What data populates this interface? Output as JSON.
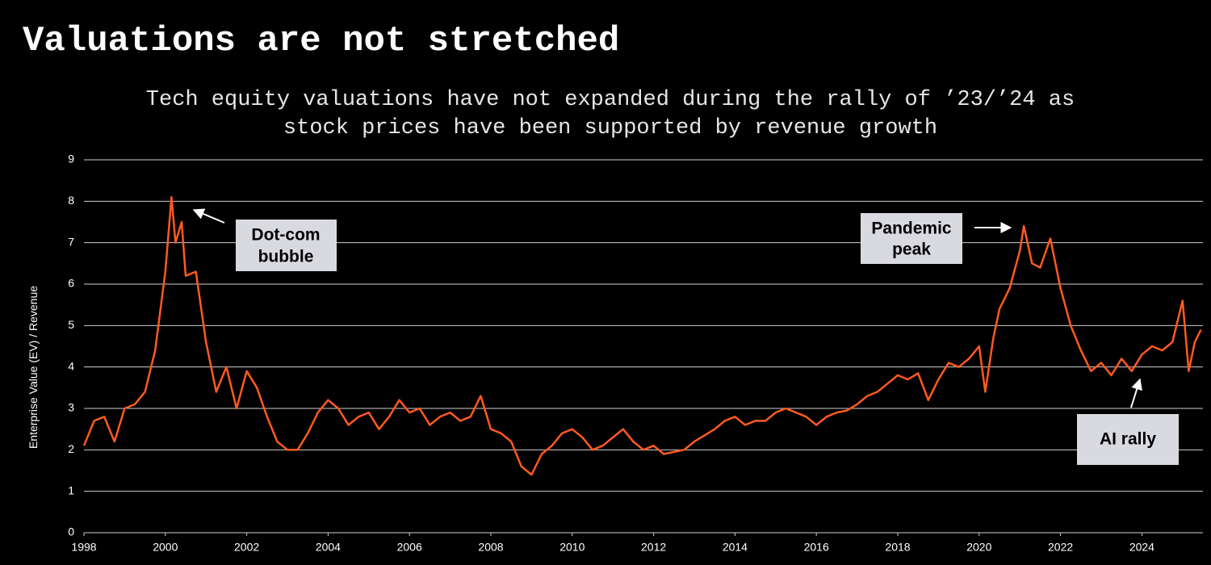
{
  "chart_data": {
    "type": "line",
    "title": "Valuations are not stretched",
    "subtitle": [
      "Tech equity valuations have not expanded during the rally of ’23/’24 as",
      "stock prices have been supported by revenue growth"
    ],
    "y_label": "Enterprise Value (EV) / Revenue",
    "color": "#ff5a1f",
    "grid": true,
    "xlim": [
      1998,
      2025.5
    ],
    "xticks": [
      1998,
      2000,
      2002,
      2004,
      2006,
      2008,
      2010,
      2012,
      2014,
      2016,
      2018,
      2020,
      2022,
      2024
    ],
    "ylim": [
      0,
      9
    ],
    "yticks": [
      0,
      1,
      2,
      3,
      4,
      5,
      6,
      7,
      8,
      9
    ],
    "x": [
      1998.0,
      1998.25,
      1998.5,
      1998.75,
      1999.0,
      1999.25,
      1999.5,
      1999.75,
      2000.0,
      2000.15,
      2000.25,
      2000.4,
      2000.5,
      2000.75,
      2001.0,
      2001.25,
      2001.5,
      2001.75,
      2002.0,
      2002.25,
      2002.5,
      2002.75,
      2003.0,
      2003.25,
      2003.5,
      2003.75,
      2004.0,
      2004.25,
      2004.5,
      2004.75,
      2005.0,
      2005.25,
      2005.5,
      2005.75,
      2006.0,
      2006.25,
      2006.5,
      2006.75,
      2007.0,
      2007.25,
      2007.5,
      2007.75,
      2008.0,
      2008.25,
      2008.5,
      2008.75,
      2009.0,
      2009.25,
      2009.5,
      2009.75,
      2010.0,
      2010.25,
      2010.5,
      2010.75,
      2011.0,
      2011.25,
      2011.5,
      2011.75,
      2012.0,
      2012.25,
      2012.5,
      2012.75,
      2013.0,
      2013.25,
      2013.5,
      2013.75,
      2014.0,
      2014.25,
      2014.5,
      2014.75,
      2015.0,
      2015.25,
      2015.5,
      2015.75,
      2016.0,
      2016.25,
      2016.5,
      2016.75,
      2017.0,
      2017.25,
      2017.5,
      2017.75,
      2018.0,
      2018.25,
      2018.5,
      2018.75,
      2019.0,
      2019.25,
      2019.5,
      2019.75,
      2020.0,
      2020.15,
      2020.35,
      2020.5,
      2020.75,
      2021.0,
      2021.1,
      2021.3,
      2021.5,
      2021.75,
      2022.0,
      2022.25,
      2022.5,
      2022.75,
      2023.0,
      2023.25,
      2023.5,
      2023.75,
      2024.0,
      2024.25,
      2024.5,
      2024.75,
      2025.0,
      2025.15,
      2025.3,
      2025.45
    ],
    "values": [
      2.1,
      2.7,
      2.8,
      2.2,
      3.0,
      3.1,
      3.4,
      4.4,
      6.3,
      8.1,
      7.0,
      7.5,
      6.2,
      6.3,
      4.6,
      3.4,
      4.0,
      3.0,
      3.9,
      3.5,
      2.8,
      2.2,
      2.0,
      2.0,
      2.4,
      2.9,
      3.2,
      3.0,
      2.6,
      2.8,
      2.9,
      2.5,
      2.8,
      3.2,
      2.9,
      3.0,
      2.6,
      2.8,
      2.9,
      2.7,
      2.8,
      3.3,
      2.5,
      2.4,
      2.2,
      1.6,
      1.4,
      1.9,
      2.1,
      2.4,
      2.5,
      2.3,
      2.0,
      2.1,
      2.3,
      2.5,
      2.2,
      2.0,
      2.1,
      1.9,
      1.95,
      2.0,
      2.2,
      2.35,
      2.5,
      2.7,
      2.8,
      2.6,
      2.7,
      2.7,
      2.9,
      3.0,
      2.9,
      2.8,
      2.6,
      2.8,
      2.9,
      2.95,
      3.1,
      3.3,
      3.4,
      3.6,
      3.8,
      3.7,
      3.85,
      3.2,
      3.7,
      4.1,
      4.0,
      4.2,
      4.5,
      3.4,
      4.7,
      5.4,
      5.9,
      6.8,
      7.4,
      6.5,
      6.4,
      7.1,
      5.9,
      5.0,
      4.4,
      3.9,
      4.1,
      3.8,
      4.2,
      3.9,
      4.3,
      4.5,
      4.4,
      4.6,
      5.6,
      3.9,
      4.6,
      4.9
    ],
    "annotations": [
      {
        "lines": [
          "Dot-com",
          "bubble"
        ]
      },
      {
        "lines": [
          "Pandemic",
          "peak"
        ]
      },
      {
        "lines": [
          "AI rally"
        ]
      }
    ]
  }
}
